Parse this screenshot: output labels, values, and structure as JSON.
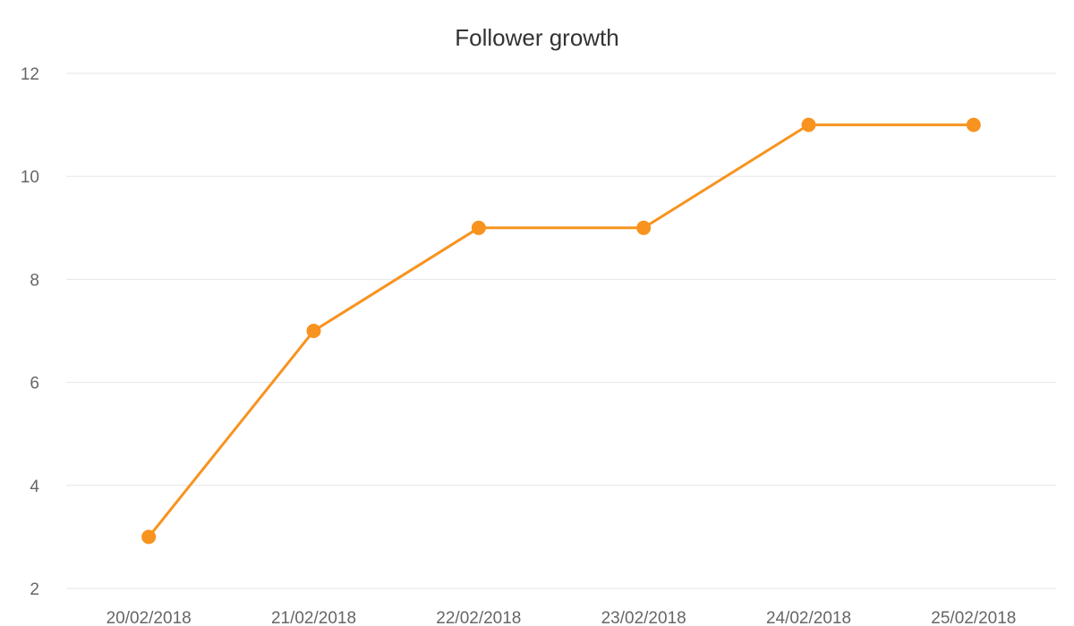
{
  "chart_data": {
    "type": "line",
    "title": "Follower growth",
    "xlabel": "",
    "ylabel": "",
    "categories": [
      "20/02/2018",
      "21/02/2018",
      "22/02/2018",
      "23/02/2018",
      "24/02/2018",
      "25/02/2018"
    ],
    "series": [
      {
        "values": [
          3,
          7,
          9,
          9,
          11,
          11
        ],
        "color": "#f7931e"
      }
    ],
    "ylim": [
      2,
      12
    ],
    "yticks": [
      2,
      4,
      6,
      8,
      10,
      12
    ],
    "grid": true,
    "legend": "none"
  }
}
